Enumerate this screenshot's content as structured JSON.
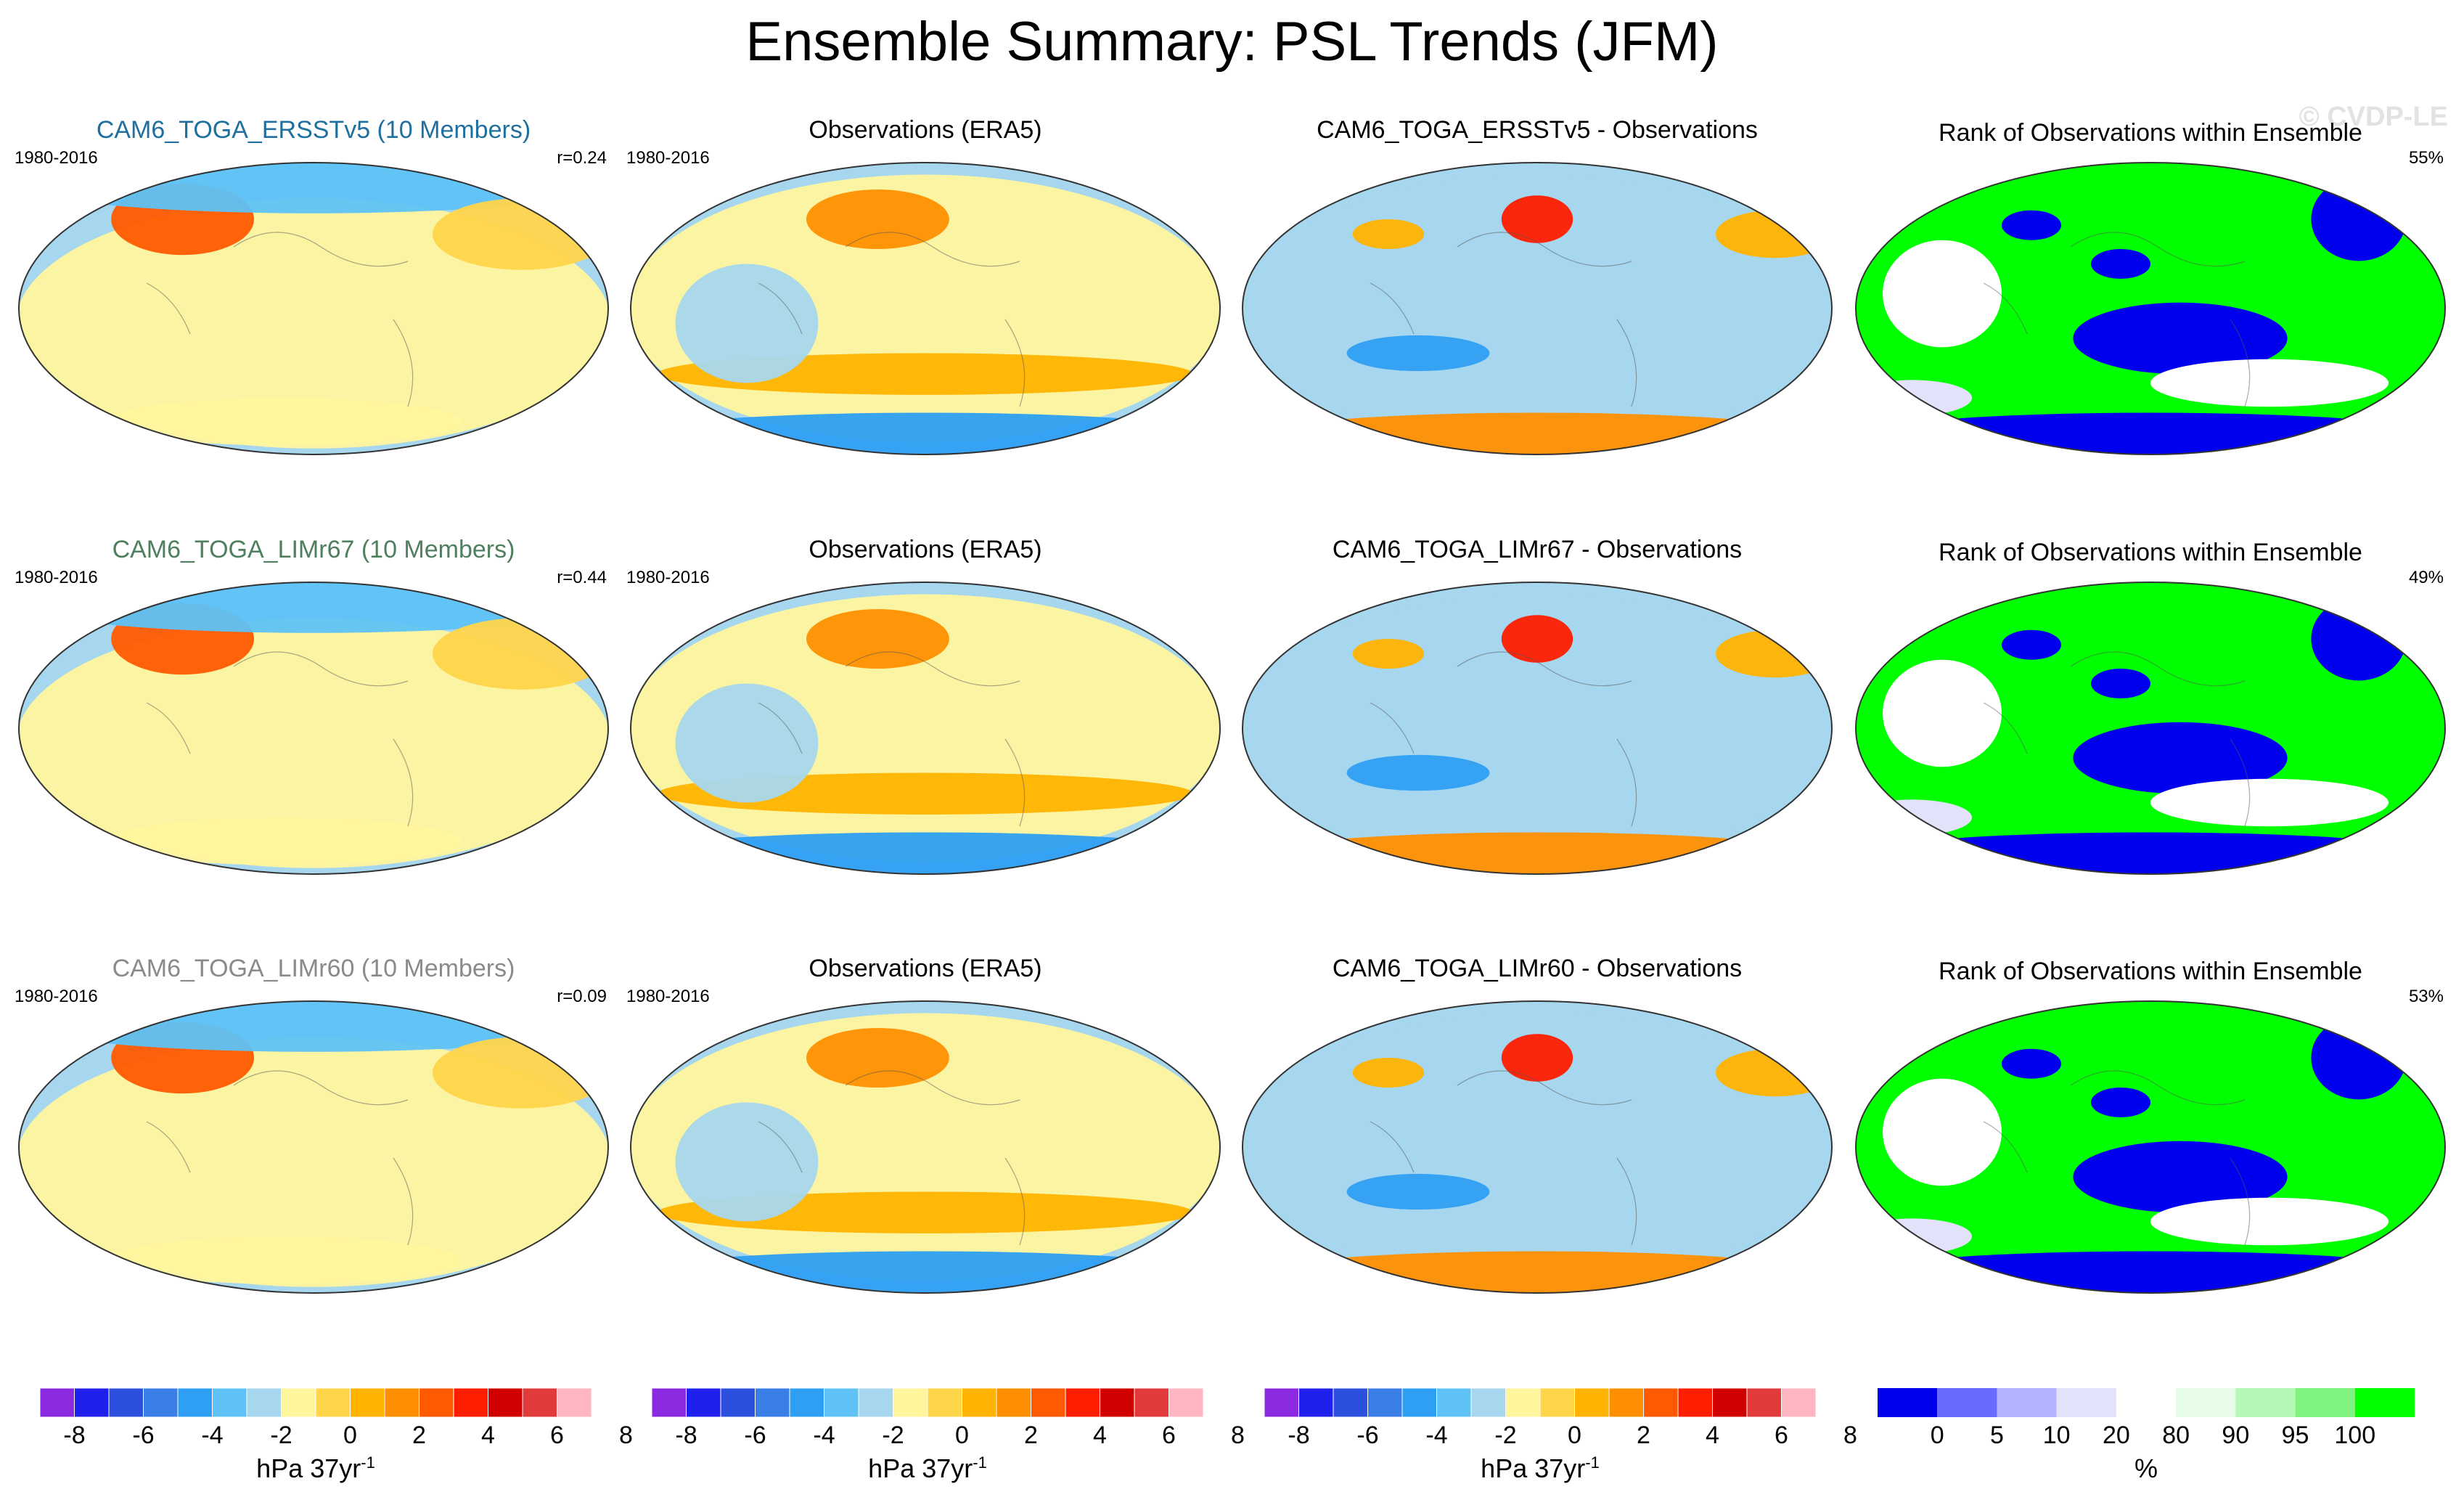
{
  "title": "Ensemble Summary: PSL Trends (JFM)",
  "watermark": "© CVDP-LE",
  "colors": {
    "trend_scale": [
      "#8a2be2",
      "#2020ee",
      "#2d4fdd",
      "#3a7ee8",
      "#2e9ff2",
      "#5ec2f5",
      "#a7d7ee",
      "#fff59d",
      "#ffd54a",
      "#ffb300",
      "#ff8f00",
      "#ff5a00",
      "#ff1e00",
      "#d10000",
      "#e03a3a",
      "#ffb6c1"
    ],
    "rank_scale": [
      "#0000ee",
      "#6a6aff",
      "#b3b3ff",
      "#e2e3fb",
      "#ffffff",
      "#e6fce6",
      "#b5f7b5",
      "#7ff27f",
      "#00ff00"
    ]
  },
  "chart_data": [
    {
      "type": "heatmap",
      "row": 1,
      "col": 1,
      "title": "CAM6_TOGA_ERSSTv5 (10 Members)",
      "period": "1980-2016",
      "stat": "r=0.24",
      "title_color": "#1f6f9f",
      "field": "model"
    },
    {
      "type": "heatmap",
      "row": 1,
      "col": 2,
      "title": "Observations (ERA5)",
      "period": "1980-2016",
      "field": "obs"
    },
    {
      "type": "heatmap",
      "row": 1,
      "col": 3,
      "title": "CAM6_TOGA_ERSSTv5 - Observations",
      "field": "diff"
    },
    {
      "type": "heatmap",
      "row": 1,
      "col": 4,
      "title": "Rank of Observations within Ensemble",
      "stat": "55%",
      "field": "rank"
    },
    {
      "type": "heatmap",
      "row": 2,
      "col": 1,
      "title": "CAM6_TOGA_LIMr67 (10 Members)",
      "period": "1980-2016",
      "stat": "r=0.44",
      "title_color": "#4f7f5f",
      "field": "model"
    },
    {
      "type": "heatmap",
      "row": 2,
      "col": 2,
      "title": "Observations (ERA5)",
      "period": "1980-2016",
      "field": "obs"
    },
    {
      "type": "heatmap",
      "row": 2,
      "col": 3,
      "title": "CAM6_TOGA_LIMr67 - Observations",
      "field": "diff"
    },
    {
      "type": "heatmap",
      "row": 2,
      "col": 4,
      "title": "Rank of Observations within Ensemble",
      "stat": "49%",
      "field": "rank"
    },
    {
      "type": "heatmap",
      "row": 3,
      "col": 1,
      "title": "CAM6_TOGA_LIMr60 (10 Members)",
      "period": "1980-2016",
      "stat": "r=0.09",
      "title_color": "#8a8a8a",
      "field": "model"
    },
    {
      "type": "heatmap",
      "row": 3,
      "col": 2,
      "title": "Observations (ERA5)",
      "period": "1980-2016",
      "field": "obs"
    },
    {
      "type": "heatmap",
      "row": 3,
      "col": 3,
      "title": "CAM6_TOGA_LIMr60 - Observations",
      "field": "diff"
    },
    {
      "type": "heatmap",
      "row": 3,
      "col": 4,
      "title": "Rank of Observations within Ensemble",
      "stat": "53%",
      "field": "rank"
    }
  ],
  "colorbars": {
    "trend": {
      "ticks": [
        "-8",
        "-6",
        "-4",
        "-2",
        "0",
        "2",
        "4",
        "6",
        "8"
      ],
      "unit": "hPa 37yr",
      "unit_sup": "-1"
    },
    "rank": {
      "ticks": [
        "0",
        "5",
        "10",
        "20",
        "80",
        "90",
        "95",
        "100"
      ],
      "unit": "%"
    }
  }
}
